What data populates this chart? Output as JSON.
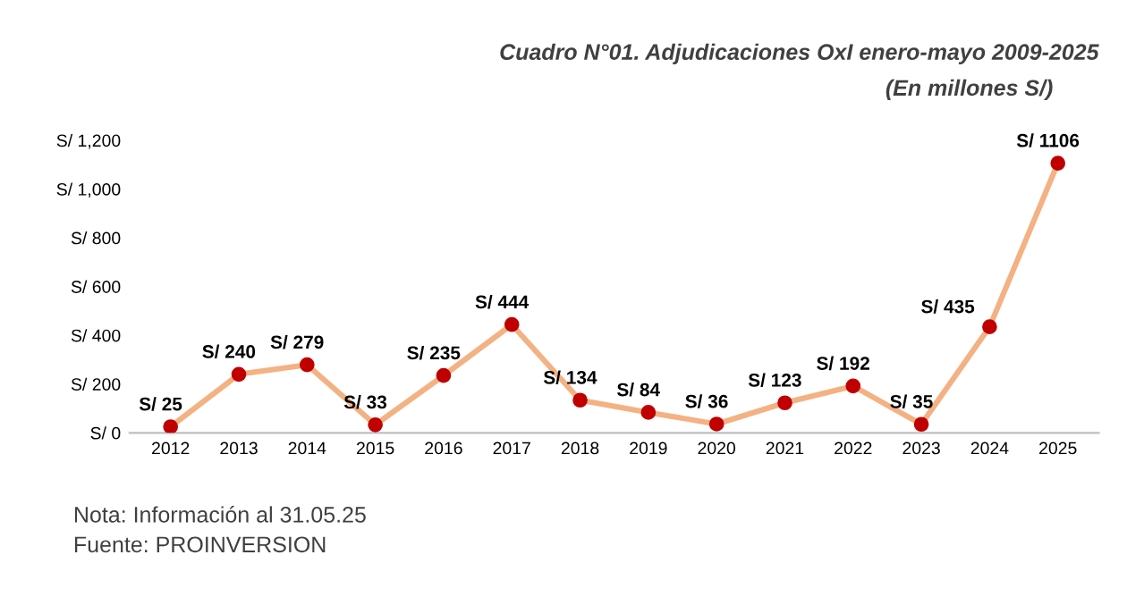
{
  "chart_data": {
    "type": "line",
    "title": "Cuadro N°01. Adjudicaciones OxI enero-mayo 2009-2025",
    "subtitle": "(En millones S/)",
    "categories": [
      "2012",
      "2013",
      "2014",
      "2015",
      "2016",
      "2017",
      "2018",
      "2019",
      "2020",
      "2021",
      "2022",
      "2023",
      "2024",
      "2025"
    ],
    "series": [
      {
        "color": "#f4b183",
        "values": [
          25,
          240,
          279,
          33,
          235,
          444,
          134,
          84,
          36,
          123,
          192,
          35,
          435,
          1106
        ],
        "value_labels": [
          "S/ 25",
          "S/ 240",
          "S/ 279",
          "S/ 33",
          "S/ 235",
          "S/ 444",
          "S/ 134",
          "S/ 84",
          "S/ 36",
          "S/ 123",
          "S/ 192",
          "S/ 35",
          "S/ 435",
          "S/ 1106"
        ]
      }
    ],
    "marker": "circle",
    "line_style": "solid",
    "ylim": [
      0,
      1200
    ],
    "yticks": [
      {
        "value": 0,
        "label": "S/ 0"
      },
      {
        "value": 200,
        "label": "S/ 200"
      },
      {
        "value": 400,
        "label": "S/ 400"
      },
      {
        "value": 600,
        "label": "S/ 600"
      },
      {
        "value": 800,
        "label": "S/ 800"
      },
      {
        "value": 1000,
        "label": "S/ 1,000"
      },
      {
        "value": 1200,
        "label": "S/ 1,200"
      }
    ],
    "grid": false,
    "annotations": [
      "Nota: Información al 31.05.25",
      "Fuente: PROINVERSION"
    ]
  }
}
